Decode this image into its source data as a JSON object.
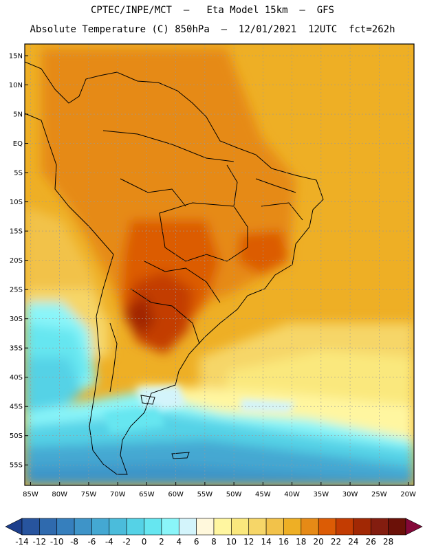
{
  "header": {
    "line1": "CPTEC/INPE/MCT  –   Eta Model 15km  –  GFS",
    "line2": "Absolute Temperature (C) 850hPa  –  12/01/2021  12UTC  fct=262h"
  },
  "map": {
    "lat_labels": [
      "15N",
      "10N",
      "5N",
      "EQ",
      "5S",
      "10S",
      "15S",
      "20S",
      "25S",
      "30S",
      "35S",
      "40S",
      "45S",
      "50S",
      "55S"
    ],
    "lat_values": [
      15,
      10,
      5,
      0,
      -5,
      -10,
      -15,
      -20,
      -25,
      -30,
      -35,
      -40,
      -45,
      -50,
      -55
    ],
    "lon_labels": [
      "85W",
      "80W",
      "75W",
      "70W",
      "65W",
      "60W",
      "55W",
      "50W",
      "45W",
      "40W",
      "35W",
      "30W",
      "25W",
      "20W"
    ],
    "lon_values": [
      -85,
      -80,
      -75,
      -70,
      -65,
      -60,
      -55,
      -50,
      -45,
      -40,
      -35,
      -30,
      -25,
      -20
    ],
    "lat_range": [
      -58.5,
      17
    ],
    "lon_range": [
      -86,
      -19
    ],
    "grid": "dashed",
    "variable": "temperature",
    "unit": "C"
  },
  "colorbar": {
    "levels": [
      "-14",
      "-12",
      "-10",
      "-8",
      "-6",
      "-4",
      "-2",
      "0",
      "2",
      "4",
      "6",
      "8",
      "10",
      "12",
      "14",
      "16",
      "18",
      "20",
      "22",
      "24",
      "26",
      "28"
    ],
    "colors": [
      "#1d3f8c",
      "#27549e",
      "#2f6aae",
      "#367fbd",
      "#3e94c8",
      "#44a8d2",
      "#4bbcdb",
      "#55d2e6",
      "#66e6f0",
      "#8af5f9",
      "#d3f4fb",
      "#fff8dc",
      "#fff6a0",
      "#fae87d",
      "#f6d668",
      "#f2c24a",
      "#eeaf25",
      "#e68a16",
      "#dc5c05",
      "#c33c02",
      "#a12804",
      "#831d0f",
      "#6b1108",
      "#840839"
    ]
  }
}
